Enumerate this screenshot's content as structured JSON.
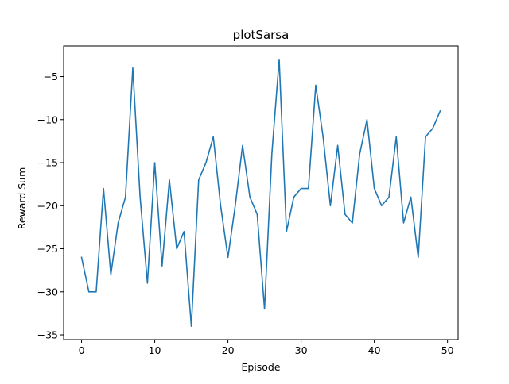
{
  "chart_data": {
    "type": "line",
    "title": "plotSarsa",
    "xlabel": "Episode",
    "ylabel": "Reward Sum",
    "xlim": [
      -2.45,
      51.45
    ],
    "ylim": [
      -35.55,
      -1.45
    ],
    "xticks": [
      0,
      10,
      20,
      30,
      40,
      50
    ],
    "xtick_labels": [
      "0",
      "10",
      "20",
      "30",
      "40",
      "50"
    ],
    "yticks": [
      -35,
      -30,
      -25,
      -20,
      -15,
      -10,
      -5
    ],
    "ytick_labels": [
      "−35",
      "−30",
      "−25",
      "−20",
      "−15",
      "−10",
      "−5"
    ],
    "grid": false,
    "legend": "none",
    "series": [
      {
        "color": "#1f77b4",
        "x": [
          0,
          1,
          2,
          3,
          4,
          5,
          6,
          7,
          8,
          9,
          10,
          11,
          12,
          13,
          14,
          15,
          16,
          17,
          18,
          19,
          20,
          21,
          22,
          23,
          24,
          25,
          26,
          27,
          28,
          29,
          30,
          31,
          32,
          33,
          34,
          35,
          36,
          37,
          38,
          39,
          40,
          41,
          42,
          43,
          44,
          45,
          46,
          47,
          48,
          49
        ],
        "values": [
          -26,
          -30,
          -30,
          -18,
          -28,
          -22,
          -19,
          -4,
          -19,
          -29,
          -15,
          -27,
          -17,
          -25,
          -23,
          -34,
          -17,
          -15,
          -12,
          -20,
          -26,
          -20,
          -13,
          -19,
          -21,
          -32,
          -14,
          -3,
          -23,
          -19,
          -18,
          -18,
          -6,
          -12,
          -20,
          -13,
          -21,
          -22,
          -14,
          -10,
          -18,
          -20,
          -19,
          -12,
          -22,
          -19,
          -26,
          -12,
          -11,
          -9
        ]
      }
    ]
  }
}
